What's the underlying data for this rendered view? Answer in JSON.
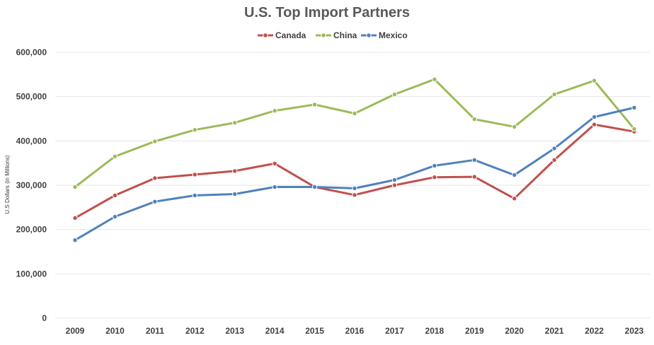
{
  "chart_data": {
    "type": "line",
    "title": "U.S. Top Import Partners",
    "ylabel": "U.S Dollars (in Millions)",
    "xlabel": "",
    "x": [
      "2009",
      "2010",
      "2011",
      "2012",
      "2013",
      "2014",
      "2015",
      "2016",
      "2017",
      "2018",
      "2019",
      "2020",
      "2021",
      "2022",
      "2023"
    ],
    "y_ticks": [
      "0",
      "100,000",
      "200,000",
      "300,000",
      "400,000",
      "500,000",
      "600,000"
    ],
    "ylim": [
      0,
      600000
    ],
    "grid": true,
    "legend": "top-center",
    "series": [
      {
        "name": "Canada",
        "color": "#c0504d",
        "values": [
          226000,
          277000,
          316000,
          324000,
          332000,
          349000,
          296000,
          278000,
          300000,
          318000,
          319000,
          270000,
          357000,
          437000,
          421000
        ]
      },
      {
        "name": "China",
        "color": "#9bbb59",
        "values": [
          296000,
          365000,
          399000,
          425000,
          441000,
          468000,
          482000,
          462000,
          505000,
          539000,
          449000,
          432000,
          505000,
          536000,
          427000
        ]
      },
      {
        "name": "Mexico",
        "color": "#4f81bd",
        "values": [
          176000,
          229000,
          263000,
          277000,
          280000,
          296000,
          296000,
          293000,
          312000,
          344000,
          357000,
          323000,
          383000,
          454000,
          475000
        ]
      }
    ]
  }
}
